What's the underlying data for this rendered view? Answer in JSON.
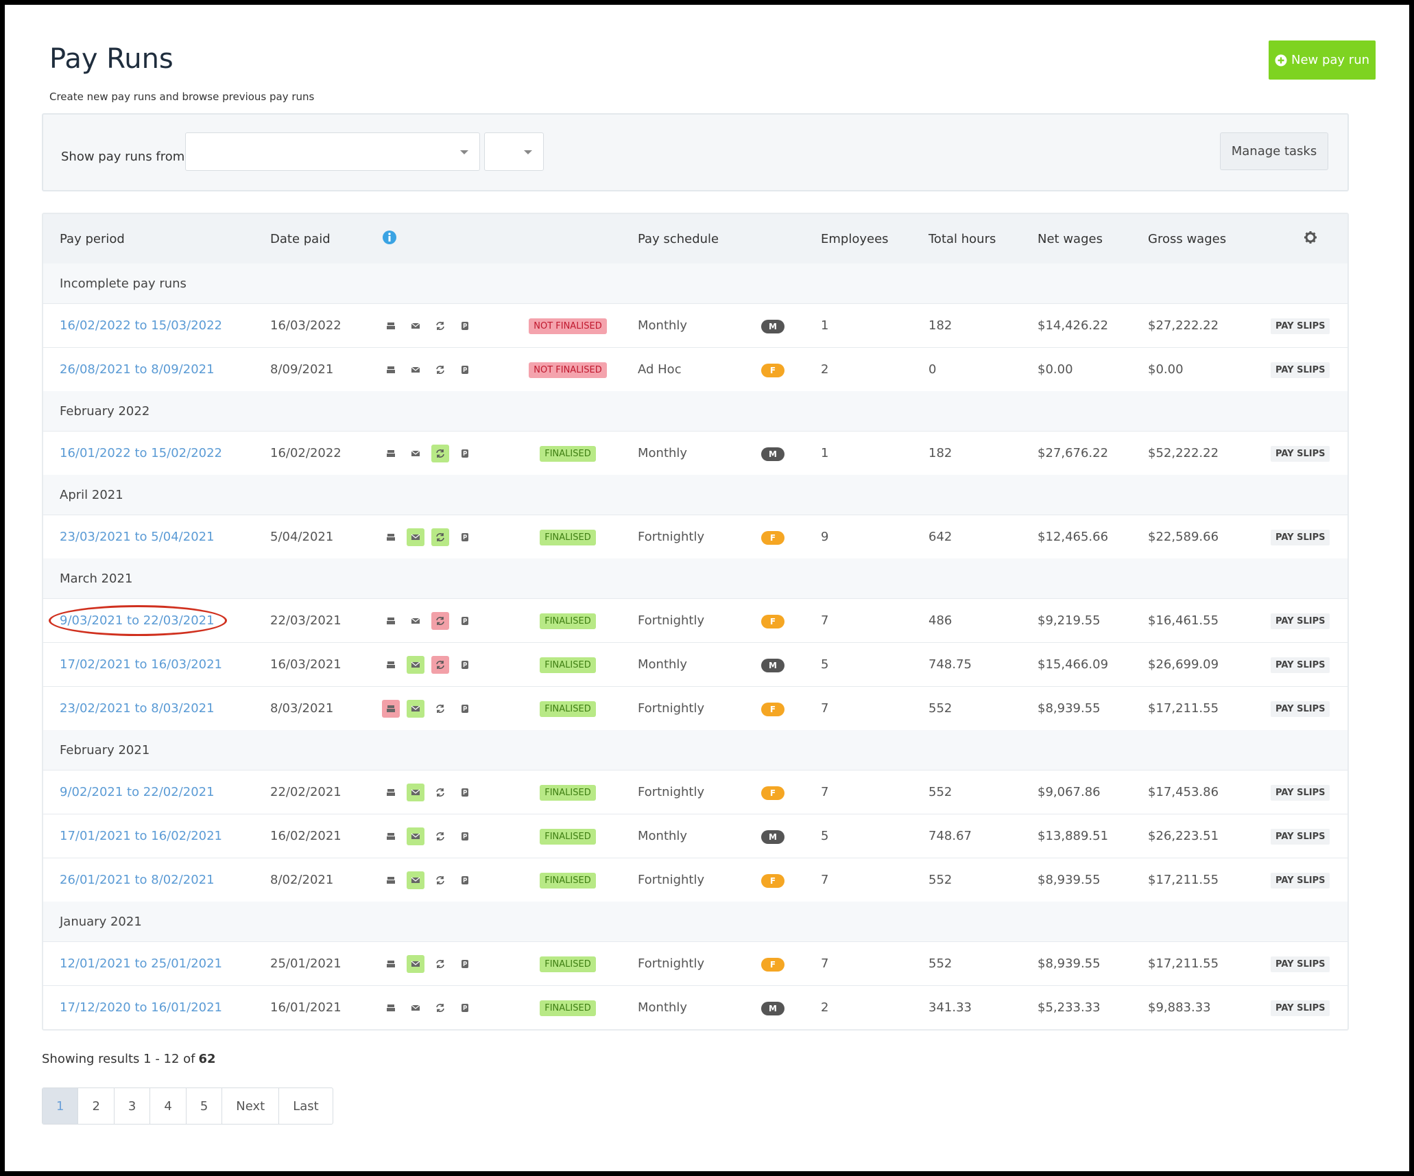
{
  "header": {
    "title": "Pay Runs",
    "subtitle": "Create new pay runs and browse previous pay runs",
    "new_button": "New pay run"
  },
  "filter": {
    "label": "Show pay runs from",
    "manage_tasks": "Manage tasks"
  },
  "table": {
    "columns": [
      "Pay period",
      "Date paid",
      "Pay schedule",
      "Employees",
      "Total hours",
      "Net wages",
      "Gross wages"
    ],
    "groups": [
      {
        "label": "Incomplete pay runs",
        "rows": [
          {
            "period": "16/02/2022 to 15/03/2022",
            "date_paid": "16/03/2022",
            "icons": [
              "grey",
              "grey",
              "grey",
              "grey"
            ],
            "status": "NOT FINALISED",
            "status_color": "red",
            "schedule": "Monthly",
            "badge": "M",
            "badge_color": "grey",
            "employees": 1,
            "hours": 182,
            "net": "$14,426.22",
            "gross": "$27,222.22",
            "action": "PAY SLIPS"
          },
          {
            "period": "26/08/2021 to 8/09/2021",
            "date_paid": "8/09/2021",
            "icons": [
              "grey",
              "grey",
              "grey",
              "grey"
            ],
            "status": "NOT FINALISED",
            "status_color": "red",
            "schedule": "Ad Hoc",
            "badge": "F",
            "badge_color": "orange",
            "employees": 2,
            "hours": 0,
            "net": "$0.00",
            "gross": "$0.00",
            "action": "PAY SLIPS"
          }
        ]
      },
      {
        "label": "February 2022",
        "rows": [
          {
            "period": "16/01/2022 to 15/02/2022",
            "date_paid": "16/02/2022",
            "icons": [
              "grey",
              "grey",
              "green",
              "grey"
            ],
            "status": "FINALISED",
            "status_color": "green",
            "schedule": "Monthly",
            "badge": "M",
            "badge_color": "grey",
            "employees": 1,
            "hours": 182,
            "net": "$27,676.22",
            "gross": "$52,222.22",
            "action": "PAY SLIPS"
          }
        ]
      },
      {
        "label": "April 2021",
        "rows": [
          {
            "period": "23/03/2021 to 5/04/2021",
            "date_paid": "5/04/2021",
            "icons": [
              "grey",
              "green",
              "green",
              "grey"
            ],
            "status": "FINALISED",
            "status_color": "green",
            "schedule": "Fortnightly",
            "badge": "F",
            "badge_color": "orange",
            "employees": 9,
            "hours": 642,
            "net": "$12,465.66",
            "gross": "$22,589.66",
            "action": "PAY SLIPS"
          }
        ]
      },
      {
        "label": "March 2021",
        "rows": [
          {
            "period": "9/03/2021 to 22/03/2021",
            "date_paid": "22/03/2021",
            "icons": [
              "grey",
              "grey",
              "red",
              "grey"
            ],
            "status": "FINALISED",
            "status_color": "green",
            "schedule": "Fortnightly",
            "badge": "F",
            "badge_color": "orange",
            "employees": 7,
            "hours": 486,
            "net": "$9,219.55",
            "gross": "$16,461.55",
            "action": "PAY SLIPS"
          },
          {
            "period": "17/02/2021 to 16/03/2021",
            "date_paid": "16/03/2021",
            "icons": [
              "grey",
              "green",
              "red",
              "grey"
            ],
            "status": "FINALISED",
            "status_color": "green",
            "schedule": "Monthly",
            "badge": "M",
            "badge_color": "grey",
            "employees": 5,
            "hours": 748.75,
            "net": "$15,466.09",
            "gross": "$26,699.09",
            "action": "PAY SLIPS"
          },
          {
            "period": "23/02/2021 to 8/03/2021",
            "date_paid": "8/03/2021",
            "icons": [
              "red",
              "green",
              "grey",
              "grey"
            ],
            "status": "FINALISED",
            "status_color": "green",
            "schedule": "Fortnightly",
            "badge": "F",
            "badge_color": "orange",
            "employees": 7,
            "hours": 552,
            "net": "$8,939.55",
            "gross": "$17,211.55",
            "action": "PAY SLIPS"
          }
        ]
      },
      {
        "label": "February 2021",
        "rows": [
          {
            "period": "9/02/2021 to 22/02/2021",
            "date_paid": "22/02/2021",
            "icons": [
              "grey",
              "green",
              "grey",
              "grey"
            ],
            "status": "FINALISED",
            "status_color": "green",
            "schedule": "Fortnightly",
            "badge": "F",
            "badge_color": "orange",
            "employees": 7,
            "hours": 552,
            "net": "$9,067.86",
            "gross": "$17,453.86",
            "action": "PAY SLIPS"
          },
          {
            "period": "17/01/2021 to 16/02/2021",
            "date_paid": "16/02/2021",
            "icons": [
              "grey",
              "green",
              "grey",
              "grey"
            ],
            "status": "FINALISED",
            "status_color": "green",
            "schedule": "Monthly",
            "badge": "M",
            "badge_color": "grey",
            "employees": 5,
            "hours": 748.67,
            "net": "$13,889.51",
            "gross": "$26,223.51",
            "action": "PAY SLIPS"
          },
          {
            "period": "26/01/2021 to 8/02/2021",
            "date_paid": "8/02/2021",
            "icons": [
              "grey",
              "green",
              "grey",
              "grey"
            ],
            "status": "FINALISED",
            "status_color": "green",
            "schedule": "Fortnightly",
            "badge": "F",
            "badge_color": "orange",
            "employees": 7,
            "hours": 552,
            "net": "$8,939.55",
            "gross": "$17,211.55",
            "action": "PAY SLIPS"
          }
        ]
      },
      {
        "label": "January 2021",
        "rows": [
          {
            "period": "12/01/2021 to 25/01/2021",
            "date_paid": "25/01/2021",
            "icons": [
              "grey",
              "green",
              "grey",
              "grey"
            ],
            "status": "FINALISED",
            "status_color": "green",
            "schedule": "Fortnightly",
            "badge": "F",
            "badge_color": "orange",
            "employees": 7,
            "hours": 552,
            "net": "$8,939.55",
            "gross": "$17,211.55",
            "action": "PAY SLIPS"
          },
          {
            "period": "17/12/2020 to 16/01/2021",
            "date_paid": "16/01/2021",
            "icons": [
              "grey",
              "grey",
              "grey",
              "grey"
            ],
            "status": "FINALISED",
            "status_color": "green",
            "schedule": "Monthly",
            "badge": "M",
            "badge_color": "grey",
            "employees": 2,
            "hours": 341.33,
            "net": "$5,233.33",
            "gross": "$9,883.33",
            "action": "PAY SLIPS"
          }
        ]
      }
    ]
  },
  "pagination": {
    "summary": "Showing results 1 - 12 of",
    "total": "62",
    "pages": [
      "1",
      "2",
      "3",
      "4",
      "5",
      "Next",
      "Last"
    ]
  }
}
